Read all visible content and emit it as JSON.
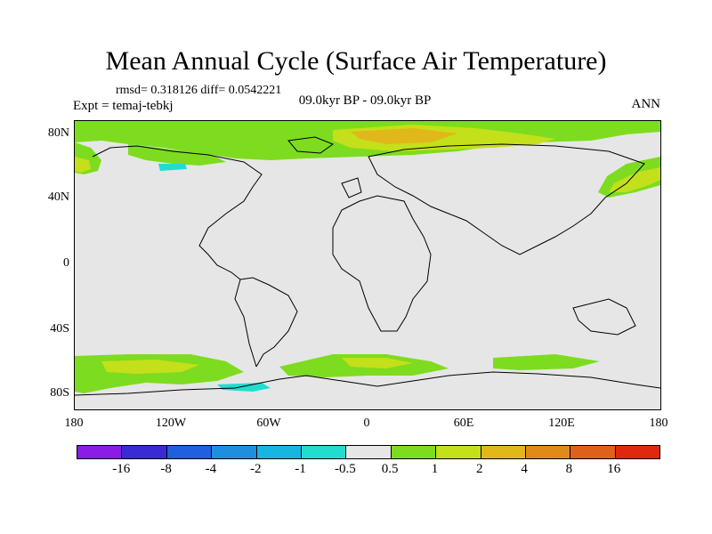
{
  "title": "Mean Annual Cycle (Surface Air Temperature)",
  "stats_line": "rmsd= 0.318126 diff= 0.0542221",
  "expt_label": "Expt = temaj-tebkj",
  "period_label": "09.0kyr BP - 09.0kyr BP",
  "season_label": "ANN",
  "lat_ticks": [
    "80N",
    "40N",
    "0",
    "40S",
    "80S"
  ],
  "lon_ticks": [
    "180",
    "120W",
    "60W",
    "0",
    "60E",
    "120E",
    "180"
  ],
  "colorbar": {
    "levels": [
      "-16",
      "-8",
      "-4",
      "-2",
      "-1",
      "-0.5",
      "0.5",
      "1",
      "2",
      "4",
      "8",
      "16"
    ],
    "colors": [
      "#8a1ce6",
      "#3a2ad6",
      "#1f5fe0",
      "#1e8fe0",
      "#17b6e0",
      "#22dcd0",
      "#e6e6e6",
      "#7ddc1f",
      "#c4e01a",
      "#e0b81a",
      "#e08a1a",
      "#e0601a",
      "#e0280f"
    ]
  }
}
